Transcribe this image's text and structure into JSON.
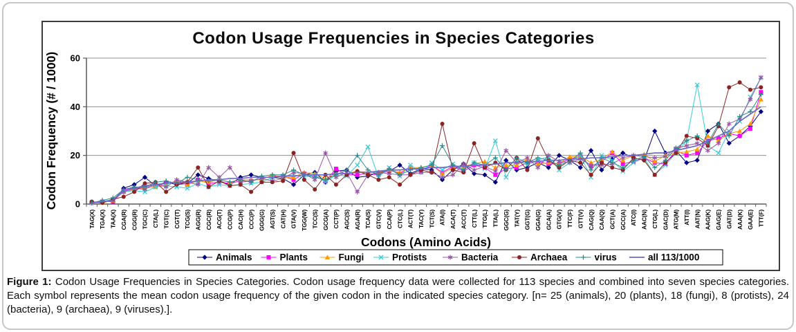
{
  "figure": {
    "caption_label": "Figure 1:",
    "caption_body": "Codon Usage Frequencies in Species Categories. Codon usage frequency data were collected for 113 species and combined into seven species categories. Each symbol represents the mean codon usage frequency of the given codon in the indicated species category. [n= 25 (animals), 20 (plants), 18 (fungi), 8 (protists), 24 (bacteria), 9 (archaea), 9 (viruses).]."
  },
  "chart_data": {
    "type": "line",
    "title": "Codon Usage Frequencies in Species Categories",
    "xlabel": "Codons (Amino Acids)",
    "ylabel": "Codon Frequency (# / 1000)",
    "ylim": [
      0,
      60
    ],
    "yticks": [
      0,
      20,
      40,
      60
    ],
    "grid": "horizontal",
    "legend_position": "bottom",
    "categories": [
      "TAG(X)",
      "TGA(X)",
      "TAA(X)",
      "CGA(R)",
      "CGG(R)",
      "TGC(C)",
      "CTA(L)",
      "TGT(C)",
      "CGT(T)",
      "TCG(S)",
      "AGG(R)",
      "CGC(R)",
      "ACG(T)",
      "CCG(P)",
      "CAC(H)",
      "CCC(P)",
      "GGG(G)",
      "AGT(S)",
      "CAT(H)",
      "GTA(V)",
      "TGG(W)",
      "TCC(S)",
      "GCG(A)",
      "CCT(P)",
      "AGC(S)",
      "AGA(R)",
      "TCA(S)",
      "GTC(V)",
      "CCA(P)",
      "CTC(L)",
      "ACT(T)",
      "TAC(Y)",
      "TCT(S)",
      "ATA(I)",
      "ACA(T)",
      "ACC(T)",
      "CTT(L)",
      "TTG(L)",
      "TTA(L)",
      "GGC(G)",
      "TAT(Y)",
      "GGT(G)",
      "GGA(G)",
      "GCA(A)",
      "GTG(V)",
      "TTC(F)",
      "GTT(V)",
      "CAG(Q)",
      "CAA(Q)",
      "GCT(A)",
      "GCC(A)",
      "ATC(I)",
      "AAC(N)",
      "CTG(L)",
      "GAC(D)",
      "ATG(M)",
      "ATT(I)",
      "AAT(N)",
      "AAG(K)",
      "GAG(E)",
      "GAT(D)",
      "AAA(K)",
      "GAA(E)",
      "TTT(F)"
    ],
    "series": [
      {
        "name": "Animals",
        "color": "#000080",
        "marker": "diamond",
        "values": [
          0.5,
          1,
          1,
          6.5,
          8,
          11,
          7.5,
          9,
          8,
          8.5,
          12,
          10.5,
          9.5,
          8,
          11,
          12,
          11,
          11,
          10.5,
          8,
          12,
          13,
          9,
          13.5,
          14,
          11,
          11.5,
          13,
          13.5,
          16,
          12.5,
          14.5,
          14,
          10,
          14,
          16.5,
          12.5,
          12,
          9,
          18,
          14,
          15,
          17,
          15,
          20,
          18,
          15,
          22,
          14,
          18.5,
          21,
          19,
          18,
          30,
          21,
          22,
          17,
          18,
          30,
          33,
          25,
          28,
          32,
          38
        ]
      },
      {
        "name": "Plants",
        "color": "#ff00ff",
        "marker": "square",
        "values": [
          0.5,
          1,
          1,
          5.5,
          6,
          7,
          7.5,
          8.5,
          9,
          8,
          10,
          8.5,
          9,
          8.5,
          9.5,
          9.5,
          10.5,
          11.5,
          11.5,
          10,
          12.5,
          11.5,
          9.5,
          14.5,
          12,
          12,
          12.5,
          12,
          14,
          12.5,
          15,
          13.5,
          16,
          13,
          15.5,
          13.5,
          16,
          15,
          12,
          14.5,
          15,
          17,
          17.5,
          16.5,
          16.5,
          18.5,
          19.5,
          15.5,
          17.5,
          21,
          16.5,
          17.5,
          19,
          17,
          16.5,
          22,
          20,
          21,
          26,
          27,
          29,
          28,
          31,
          46
        ]
      },
      {
        "name": "Fungi",
        "color": "#ff9900",
        "marker": "triangle",
        "values": [
          0.5,
          0.5,
          1.5,
          5,
          6,
          6.5,
          7,
          8,
          9.5,
          8,
          9.5,
          9,
          10,
          9,
          10,
          10,
          10,
          12,
          11,
          11,
          13,
          12.5,
          10.5,
          12.5,
          12.5,
          13.5,
          13,
          13,
          14,
          13,
          15,
          15,
          16,
          12.5,
          15,
          15.5,
          16.5,
          17.5,
          15,
          16,
          16,
          18.5,
          16.5,
          17,
          16.5,
          19.5,
          19.5,
          17,
          18.5,
          21.5,
          18,
          20,
          20.5,
          17.5,
          20,
          21,
          21.5,
          22.5,
          28,
          26,
          29,
          30,
          33,
          43
        ]
      },
      {
        "name": "Protists",
        "color": "#35ccd9",
        "marker": "x",
        "values": [
          0.5,
          1,
          2,
          5,
          5.5,
          5,
          7,
          7.5,
          7,
          6.5,
          8.5,
          7,
          8,
          7.5,
          8,
          8.5,
          9,
          11,
          11.5,
          12,
          11,
          12,
          9,
          12,
          11.5,
          16,
          23.5,
          11,
          15,
          11.5,
          16,
          13,
          17,
          14,
          16.5,
          14,
          17,
          14.5,
          26,
          11,
          18,
          16,
          18,
          19.5,
          14,
          17,
          20,
          11,
          20,
          18,
          13.5,
          17,
          19,
          12,
          16,
          21,
          26,
          49,
          24,
          21,
          30,
          34,
          44,
          52
        ]
      },
      {
        "name": "Bacteria",
        "color": "#9955a5",
        "marker": "asterisk",
        "values": [
          0.5,
          1,
          1.5,
          5,
          6.5,
          6,
          8.5,
          7,
          10,
          9,
          8,
          15,
          11,
          15,
          9,
          9.5,
          10.5,
          9.5,
          10.5,
          13,
          12.5,
          10,
          21,
          11,
          13,
          5,
          12,
          13,
          12.5,
          12,
          12,
          13,
          13,
          11,
          12,
          16.5,
          14,
          15.5,
          13.5,
          22,
          17,
          19,
          15,
          20,
          17.5,
          17,
          18.5,
          16,
          16,
          16.5,
          19,
          20,
          19.5,
          19,
          19.5,
          23,
          24,
          25,
          22,
          25,
          33,
          35,
          43,
          52
        ]
      },
      {
        "name": "Archaea",
        "color": "#8b2323",
        "marker": "circle",
        "values": [
          1,
          0.5,
          2,
          3,
          5,
          8.5,
          9,
          5,
          8,
          9,
          15,
          7,
          9.5,
          7.5,
          8,
          5,
          9,
          9,
          9.5,
          21,
          10,
          6,
          12,
          8,
          12,
          13.5,
          12,
          10,
          11,
          8,
          12,
          14,
          13,
          33,
          14,
          13,
          25,
          15,
          17,
          14,
          19,
          14,
          27,
          18,
          15,
          18,
          17,
          12,
          17,
          15,
          14,
          19,
          18,
          12,
          17,
          21,
          28,
          27,
          24,
          32,
          48,
          50,
          47,
          48
        ]
      },
      {
        "name": "virus",
        "color": "#2e8b8b",
        "marker": "plus",
        "values": [
          0.5,
          1.5,
          2.5,
          6,
          7,
          7,
          9,
          9.5,
          8.5,
          11,
          10,
          9.5,
          10,
          9,
          10,
          9,
          11.5,
          12,
          12,
          14,
          12,
          11,
          10,
          12,
          14,
          20,
          14,
          12,
          14.5,
          12,
          14,
          15,
          16,
          24,
          16,
          14,
          17,
          16,
          19,
          14,
          19,
          17,
          19,
          18,
          16,
          17.5,
          21,
          14,
          19,
          17,
          15,
          18,
          19.5,
          15,
          18,
          23,
          26,
          28,
          25,
          33,
          28,
          36,
          38,
          45
        ]
      },
      {
        "name": "all 113/1000",
        "color": "#6a6ac8",
        "marker": "none",
        "values": [
          0.5,
          1,
          1.5,
          6,
          6.5,
          7.5,
          8,
          8.5,
          9,
          9,
          9.5,
          10,
          10,
          10.5,
          10.5,
          11,
          11,
          11,
          11.5,
          11.5,
          12,
          12,
          12,
          12.5,
          12.5,
          13,
          13,
          13.5,
          14,
          14,
          14.5,
          14.5,
          15,
          15,
          15.5,
          15.5,
          16,
          16,
          16.5,
          17,
          17,
          17.5,
          17.5,
          18,
          18,
          18.5,
          18.5,
          19,
          19,
          19.5,
          20,
          20,
          20.5,
          21,
          21,
          22,
          23,
          24,
          26,
          28,
          30,
          34,
          37,
          40
        ]
      }
    ]
  }
}
